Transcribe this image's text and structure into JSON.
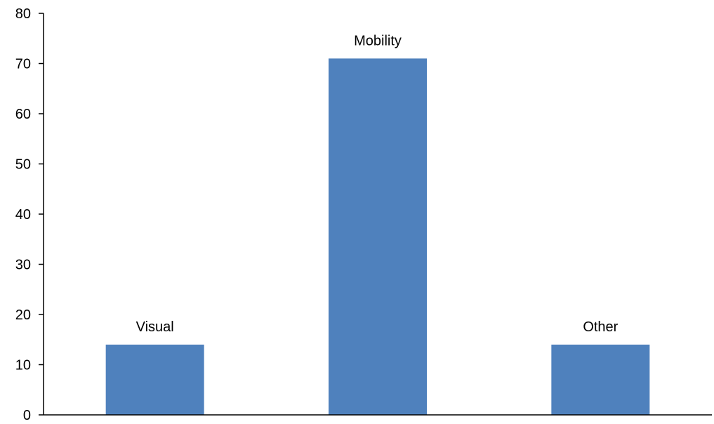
{
  "chart_data": {
    "type": "bar",
    "categories": [
      "Visual",
      "Mobility",
      "Other"
    ],
    "values": [
      14,
      71,
      14
    ],
    "ylim": [
      0,
      80
    ],
    "yticks": [
      0,
      10,
      20,
      30,
      40,
      50,
      60,
      70,
      80
    ],
    "data_labels": [
      "Visual",
      "Mobility",
      "Other"
    ],
    "title": "",
    "xlabel": "",
    "ylabel": "",
    "grid": false,
    "legend": "none",
    "colors": {
      "bar": "#4F81BD",
      "axis": "#000000",
      "text": "#000000"
    }
  }
}
